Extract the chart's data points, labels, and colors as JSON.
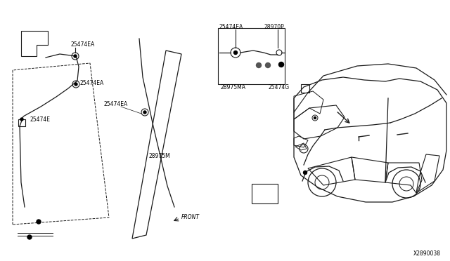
{
  "bg_color": "#ffffff",
  "line_color": "#1a1a1a",
  "line_width": 0.8,
  "text_color": "#000000",
  "font_size": 5.5,
  "labels": {
    "25474EA_top_left": "25474EA",
    "25474EA_mid_left": "25474EA",
    "25474E": "25474E",
    "25474EA_center": "25474EA",
    "28975M": "28975M",
    "25474EA_top_center": "25474EA",
    "28970P": "28970P",
    "28975MA": "28975MA",
    "25474G": "25474G",
    "front_label": "FRONT",
    "diagram_ref": "X2890038"
  }
}
